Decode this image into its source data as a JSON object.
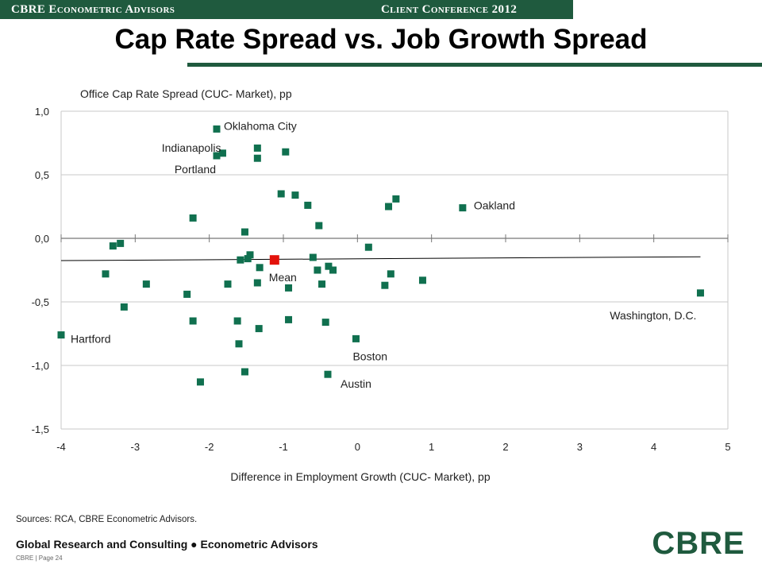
{
  "header": {
    "left_label": "CBRE Econometric Advisors",
    "right_label": "Client Conference 2012"
  },
  "title": "Cap Rate Spread vs. Job Growth Spread",
  "chart_data": {
    "type": "scatter",
    "ylabel": "Office Cap Rate Spread (CUC- Market), pp",
    "xlabel": "Difference in Employment Growth (CUC- Market), pp",
    "xlim": [
      -4,
      5
    ],
    "ylim": [
      -1.5,
      1.0
    ],
    "xticks": [
      "-4",
      "-3",
      "-2",
      "-1",
      "0",
      "1",
      "2",
      "3",
      "4",
      "5"
    ],
    "yticks": [
      "1,0",
      "0,5",
      "0,0",
      "-0,5",
      "-1,0",
      "-1,5"
    ],
    "grid": "horizontal",
    "colors": {
      "points": "#10704f",
      "mean": "#e3120b",
      "grid": "#c8c8c8",
      "trend": "#000000"
    },
    "points": [
      [
        -4.0,
        -0.76
      ],
      [
        -3.4,
        -0.28
      ],
      [
        -3.3,
        -0.06
      ],
      [
        -3.2,
        -0.04
      ],
      [
        -3.15,
        -0.54
      ],
      [
        -2.85,
        -0.36
      ],
      [
        -2.3,
        -0.44
      ],
      [
        -2.22,
        0.16
      ],
      [
        -2.22,
        -0.65
      ],
      [
        -2.12,
        -1.13
      ],
      [
        -1.9,
        0.86
      ],
      [
        -1.9,
        0.65
      ],
      [
        -1.82,
        0.67
      ],
      [
        -1.75,
        -0.36
      ],
      [
        -1.62,
        -0.65
      ],
      [
        -1.6,
        -0.83
      ],
      [
        -1.58,
        -0.17
      ],
      [
        -1.52,
        0.05
      ],
      [
        -1.52,
        -1.05
      ],
      [
        -1.48,
        -0.16
      ],
      [
        -1.45,
        -0.13
      ],
      [
        -1.35,
        0.71
      ],
      [
        -1.35,
        0.63
      ],
      [
        -1.35,
        -0.35
      ],
      [
        -1.33,
        -0.71
      ],
      [
        -1.32,
        -0.23
      ],
      [
        -1.03,
        0.35
      ],
      [
        -0.97,
        0.68
      ],
      [
        -0.93,
        -0.39
      ],
      [
        -0.93,
        -0.64
      ],
      [
        -0.84,
        0.34
      ],
      [
        -0.67,
        0.26
      ],
      [
        -0.6,
        -0.15
      ],
      [
        -0.54,
        -0.25
      ],
      [
        -0.52,
        0.1
      ],
      [
        -0.48,
        -0.36
      ],
      [
        -0.43,
        -0.66
      ],
      [
        -0.4,
        -1.07
      ],
      [
        -0.39,
        -0.22
      ],
      [
        -0.33,
        -0.25
      ],
      [
        -0.02,
        -0.79
      ],
      [
        0.15,
        -0.07
      ],
      [
        0.37,
        -0.37
      ],
      [
        0.42,
        0.25
      ],
      [
        0.45,
        -0.28
      ],
      [
        0.52,
        0.31
      ],
      [
        0.88,
        -0.33
      ],
      [
        1.42,
        0.24
      ],
      [
        4.63,
        -0.43
      ]
    ],
    "mean": {
      "x": -1.12,
      "y": -0.17,
      "label": "Mean"
    },
    "trendline": [
      [
        -4.0,
        -0.175
      ],
      [
        4.63,
        -0.145
      ]
    ],
    "annotations": [
      {
        "text": "Oklahoma City",
        "x": -1.9,
        "y": 0.86
      },
      {
        "text": "Indianapolis",
        "x": -1.82,
        "y": 0.67
      },
      {
        "text": "Portland",
        "x": -1.9,
        "y": 0.65
      },
      {
        "text": "Oakland",
        "x": 1.42,
        "y": 0.24
      },
      {
        "text": "Washington, D.C.",
        "x": 4.63,
        "y": -0.43
      },
      {
        "text": "Hartford",
        "x": -4.0,
        "y": -0.76
      },
      {
        "text": "Boston",
        "x": -0.02,
        "y": -0.79
      },
      {
        "text": "Austin",
        "x": -0.4,
        "y": -1.07
      }
    ]
  },
  "sources": "Sources: RCA, CBRE Econometric Advisors.",
  "footer": {
    "text": "Global Research and Consulting ● Econometric Advisors",
    "page": "CBRE | Page 24",
    "logo": "CBRE"
  }
}
